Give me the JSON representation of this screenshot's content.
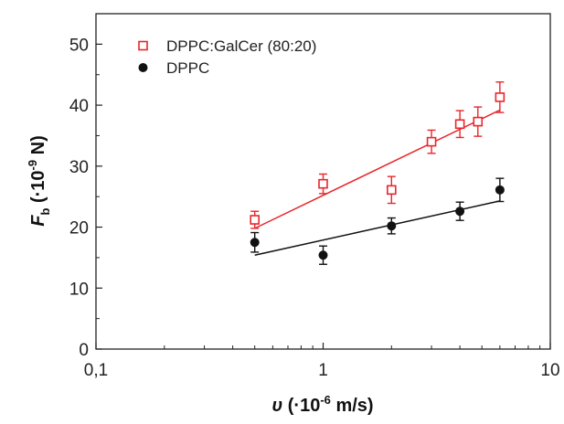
{
  "chart_data": {
    "type": "scatter",
    "title": "",
    "x_scale": "log",
    "xlim": [
      0.1,
      10
    ],
    "ylim": [
      0,
      55
    ],
    "x_ticks": [
      0.1,
      1,
      10
    ],
    "x_tick_labels": [
      "0,1",
      "1",
      "10"
    ],
    "y_ticks": [
      0,
      10,
      20,
      30,
      40,
      50
    ],
    "y_tick_labels": [
      "0",
      "10",
      "20",
      "30",
      "40",
      "50"
    ],
    "xlabel": {
      "symbol": "υ",
      "prefix": " (·10",
      "exp": "-6",
      "suffix": " m/s)"
    },
    "ylabel": {
      "symbol": "F",
      "sub": "b",
      "prefix": " (·10",
      "exp": "-9",
      "suffix": " N)"
    },
    "grid": false,
    "legend_position": "top-left",
    "series": [
      {
        "name": "DPPC:GalCer (80:20)",
        "color": "#e8262b",
        "marker": "open-square",
        "x": [
          0.5,
          1,
          2,
          3,
          4,
          4.8,
          6
        ],
        "y": [
          21.2,
          27.1,
          26.1,
          34.0,
          36.9,
          37.3,
          41.3
        ],
        "err": [
          1.4,
          1.6,
          2.2,
          1.9,
          2.2,
          2.4,
          2.5
        ],
        "fit": {
          "x": [
            0.5,
            6
          ],
          "y": [
            19.8,
            39.2
          ]
        }
      },
      {
        "name": "DPPC",
        "color": "#111111",
        "marker": "filled-circle",
        "x": [
          0.5,
          1,
          2,
          4,
          6
        ],
        "y": [
          17.5,
          15.4,
          20.2,
          22.6,
          26.1
        ],
        "err": [
          1.6,
          1.5,
          1.3,
          1.5,
          1.9
        ],
        "fit": {
          "x": [
            0.5,
            6
          ],
          "y": [
            15.4,
            24.3
          ]
        }
      }
    ]
  }
}
